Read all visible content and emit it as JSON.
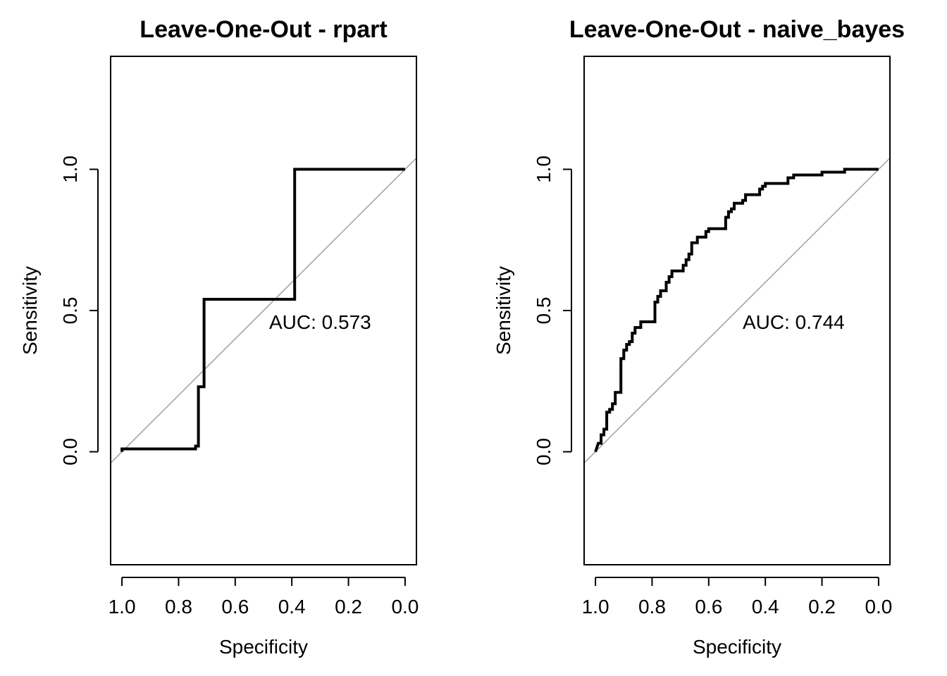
{
  "chart_data": [
    {
      "type": "line",
      "title": "Leave-One-Out - rpart",
      "xlabel": "Specificity",
      "ylabel": "Sensitivity",
      "x_reversed": true,
      "xlim": [
        1.04,
        -0.04
      ],
      "ylim": [
        -0.4,
        1.4
      ],
      "xticks": [
        "1.0",
        "0.8",
        "0.6",
        "0.4",
        "0.2",
        "0.0"
      ],
      "yticks": [
        "0.0",
        "0.5",
        "1.0"
      ],
      "annotation": "AUC: 0.573",
      "annotation_pos": {
        "x": 0.3,
        "y": 0.46
      },
      "reference_line": "diagonal",
      "grid": false,
      "series": [
        {
          "x": [
            1.0,
            1.0,
            0.74,
            0.74,
            0.73,
            0.73,
            0.71,
            0.71,
            0.39,
            0.39,
            0.0
          ],
          "y": [
            0.0,
            0.01,
            0.01,
            0.02,
            0.02,
            0.23,
            0.23,
            0.54,
            0.54,
            1.0,
            1.0
          ]
        }
      ]
    },
    {
      "type": "line",
      "title": "Leave-One-Out - naive_bayes",
      "xlabel": "Specificity",
      "ylabel": "Sensitivity",
      "x_reversed": true,
      "xlim": [
        1.04,
        -0.04
      ],
      "ylim": [
        -0.4,
        1.4
      ],
      "xticks": [
        "1.0",
        "0.8",
        "0.6",
        "0.4",
        "0.2",
        "0.0"
      ],
      "yticks": [
        "0.0",
        "0.5",
        "1.0"
      ],
      "annotation": "AUC: 0.744",
      "annotation_pos": {
        "x": 0.3,
        "y": 0.46
      },
      "reference_line": "diagonal",
      "grid": false,
      "series": [
        {
          "x": [
            1.0,
            0.99,
            0.98,
            0.98,
            0.97,
            0.97,
            0.96,
            0.96,
            0.95,
            0.95,
            0.94,
            0.94,
            0.93,
            0.93,
            0.91,
            0.91,
            0.9,
            0.9,
            0.89,
            0.89,
            0.88,
            0.88,
            0.87,
            0.87,
            0.86,
            0.86,
            0.84,
            0.84,
            0.83,
            0.83,
            0.82,
            0.82,
            0.79,
            0.79,
            0.78,
            0.78,
            0.77,
            0.77,
            0.75,
            0.75,
            0.74,
            0.74,
            0.73,
            0.73,
            0.69,
            0.69,
            0.68,
            0.68,
            0.67,
            0.67,
            0.66,
            0.66,
            0.64,
            0.64,
            0.61,
            0.61,
            0.6,
            0.6,
            0.54,
            0.54,
            0.53,
            0.53,
            0.52,
            0.52,
            0.51,
            0.51,
            0.5,
            0.5,
            0.48,
            0.48,
            0.47,
            0.47,
            0.42,
            0.42,
            0.41,
            0.41,
            0.4,
            0.4,
            0.39,
            0.39,
            0.32,
            0.32,
            0.3,
            0.3,
            0.2,
            0.2,
            0.12,
            0.12,
            0.0
          ],
          "y": [
            0.0,
            0.03,
            0.03,
            0.06,
            0.06,
            0.08,
            0.08,
            0.14,
            0.14,
            0.15,
            0.15,
            0.17,
            0.17,
            0.21,
            0.21,
            0.33,
            0.33,
            0.36,
            0.36,
            0.38,
            0.38,
            0.39,
            0.39,
            0.42,
            0.42,
            0.44,
            0.44,
            0.46,
            0.46,
            0.46,
            0.46,
            0.46,
            0.46,
            0.53,
            0.53,
            0.55,
            0.55,
            0.57,
            0.57,
            0.6,
            0.6,
            0.62,
            0.62,
            0.64,
            0.64,
            0.66,
            0.66,
            0.68,
            0.68,
            0.7,
            0.7,
            0.74,
            0.74,
            0.76,
            0.76,
            0.78,
            0.78,
            0.79,
            0.79,
            0.83,
            0.83,
            0.85,
            0.85,
            0.86,
            0.86,
            0.88,
            0.88,
            0.88,
            0.88,
            0.89,
            0.89,
            0.91,
            0.91,
            0.93,
            0.93,
            0.94,
            0.94,
            0.95,
            0.95,
            0.95,
            0.95,
            0.97,
            0.97,
            0.98,
            0.98,
            0.99,
            0.99,
            1.0,
            1.0
          ]
        }
      ]
    }
  ]
}
